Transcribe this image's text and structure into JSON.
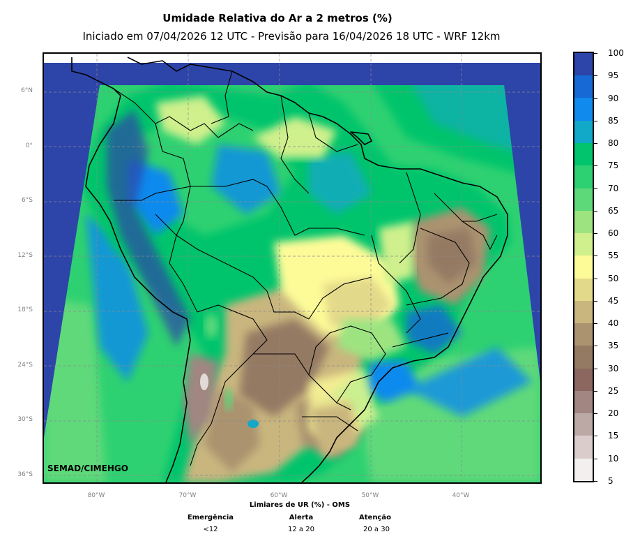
{
  "title": "Umidade Relativa do Ar a 2 metros (%)",
  "subtitle": "Iniciado em 07/04/2026 12 UTC - Previsão para 16/04/2026 18 UTC - WRF 12km",
  "credit": "SEMAD/CIMEHGO",
  "latitude_labels": [
    "6°N",
    "0°",
    "6°S",
    "12°S",
    "18°S",
    "24°S",
    "30°S",
    "36°S"
  ],
  "longitude_labels": [
    "80°W",
    "70°W",
    "60°W",
    "50°W",
    "40°W"
  ],
  "colorbar": {
    "labels": [
      "5",
      "10",
      "15",
      "20",
      "25",
      "30",
      "35",
      "40",
      "45",
      "50",
      "55",
      "60",
      "65",
      "70",
      "75",
      "80",
      "85",
      "90",
      "95",
      "100"
    ],
    "colors": [
      "#f3efee",
      "#d9cccb",
      "#bca9a6",
      "#a18681",
      "#8b6760",
      "#957a63",
      "#ab9370",
      "#c9b67e",
      "#e3d98a",
      "#fdfb98",
      "#cff08c",
      "#9de481",
      "#5ed97a",
      "#2ed171",
      "#02c46c",
      "#12a8c8",
      "#118aed",
      "#1769d6",
      "#2d44a9"
    ]
  },
  "thresholds": {
    "title": "Limiares de UR (%) - OMS",
    "items": [
      {
        "name": "Emergência",
        "range": "<12"
      },
      {
        "name": "Alerta",
        "range": "12 a 20"
      },
      {
        "name": "Atenção",
        "range": "20 a 30"
      }
    ]
  },
  "colors": {
    "ocean": "#2d44a9",
    "out_of_domain": "#ffffff",
    "grid": "#8a8a8a"
  }
}
